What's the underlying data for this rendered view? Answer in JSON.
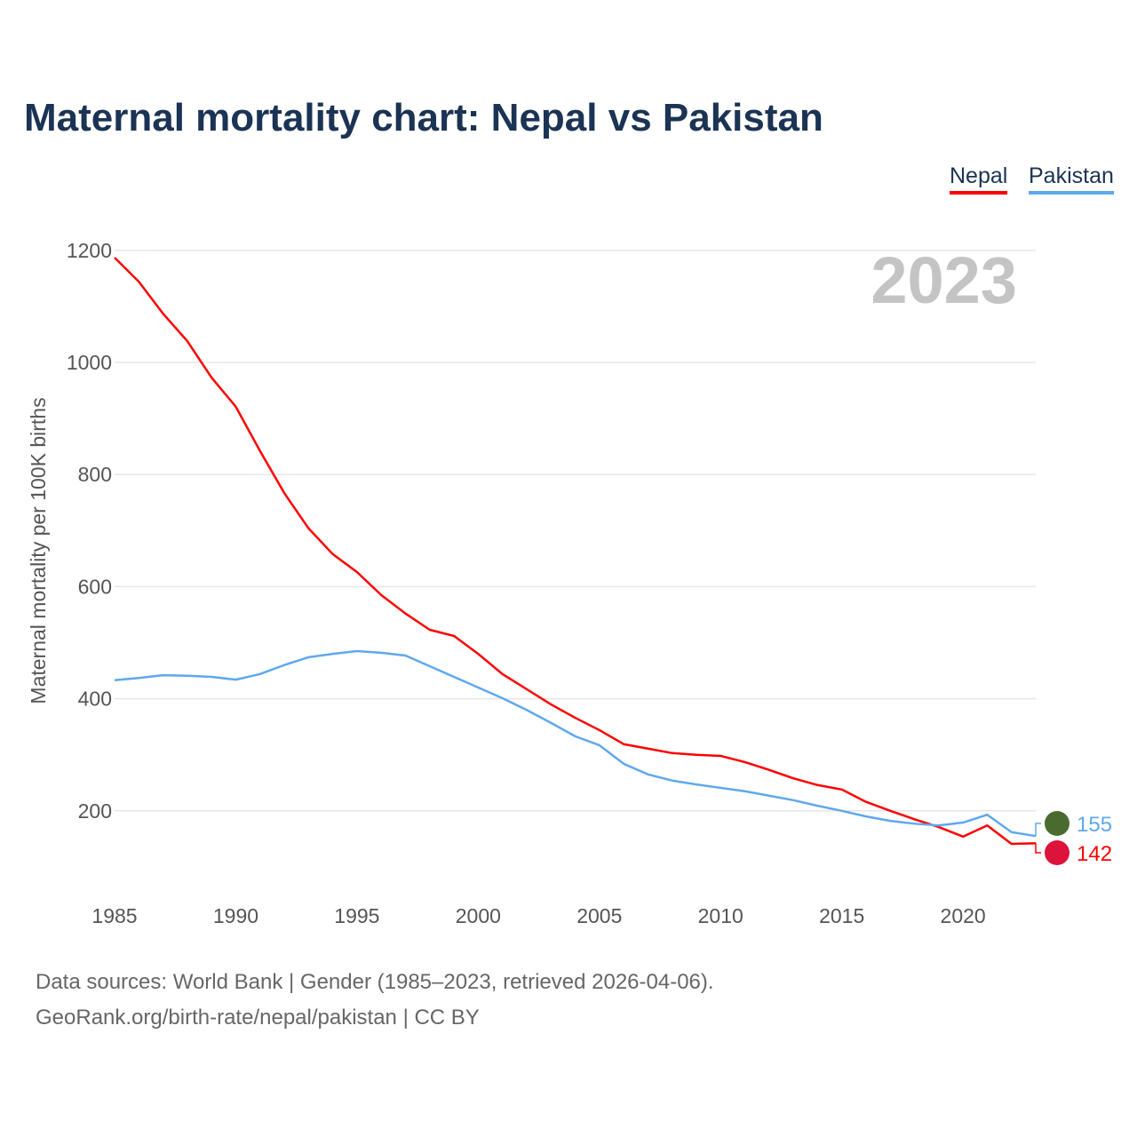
{
  "chart_data": {
    "type": "line",
    "title": "Maternal mortality chart: Nepal vs Pakistan",
    "xlabel": "",
    "ylabel": "Maternal mortality per 100K births",
    "year_label": "2023",
    "xlim": [
      1985,
      2023
    ],
    "ylim": [
      0,
      1200
    ],
    "xticks": [
      1985,
      1990,
      1995,
      2000,
      2005,
      2010,
      2015,
      2020
    ],
    "yticks": [
      200,
      400,
      600,
      800,
      1000,
      1200
    ],
    "grid": true,
    "legend_position": "top-right",
    "x": [
      1985,
      1986,
      1987,
      1988,
      1989,
      1990,
      1991,
      1992,
      1993,
      1994,
      1995,
      1996,
      1997,
      1998,
      1999,
      2000,
      2001,
      2002,
      2003,
      2004,
      2005,
      2006,
      2007,
      2008,
      2009,
      2010,
      2011,
      2012,
      2013,
      2014,
      2015,
      2016,
      2017,
      2018,
      2019,
      2020,
      2021,
      2022,
      2023
    ],
    "series": [
      {
        "name": "Nepal",
        "color": "#ff0000",
        "end_label": "142",
        "flag": "nepal-flag",
        "values": [
          1187,
          1144,
          1087,
          1038,
          973,
          921,
          842,
          767,
          704,
          658,
          626,
          585,
          552,
          523,
          512,
          480,
          444,
          417,
          390,
          366,
          344,
          319,
          311,
          303,
          300,
          298,
          287,
          273,
          258,
          246,
          238,
          216,
          200,
          185,
          171,
          154,
          174,
          141,
          142
        ]
      },
      {
        "name": "Pakistan",
        "color": "#5ea8ee",
        "end_label": "155",
        "flag": "pakistan-flag",
        "values": [
          433,
          437,
          442,
          441,
          439,
          434,
          444,
          460,
          474,
          480,
          485,
          482,
          477,
          458,
          439,
          420,
          401,
          380,
          357,
          333,
          317,
          284,
          265,
          254,
          247,
          241,
          235,
          227,
          219,
          209,
          200,
          190,
          182,
          177,
          174,
          179,
          193,
          162,
          155
        ]
      }
    ]
  },
  "footer": {
    "line1": "Data sources: World Bank | Gender (1985–2023, retrieved 2026-04-06).",
    "line2": "GeoRank.org/birth-rate/nepal/pakistan | CC BY"
  }
}
